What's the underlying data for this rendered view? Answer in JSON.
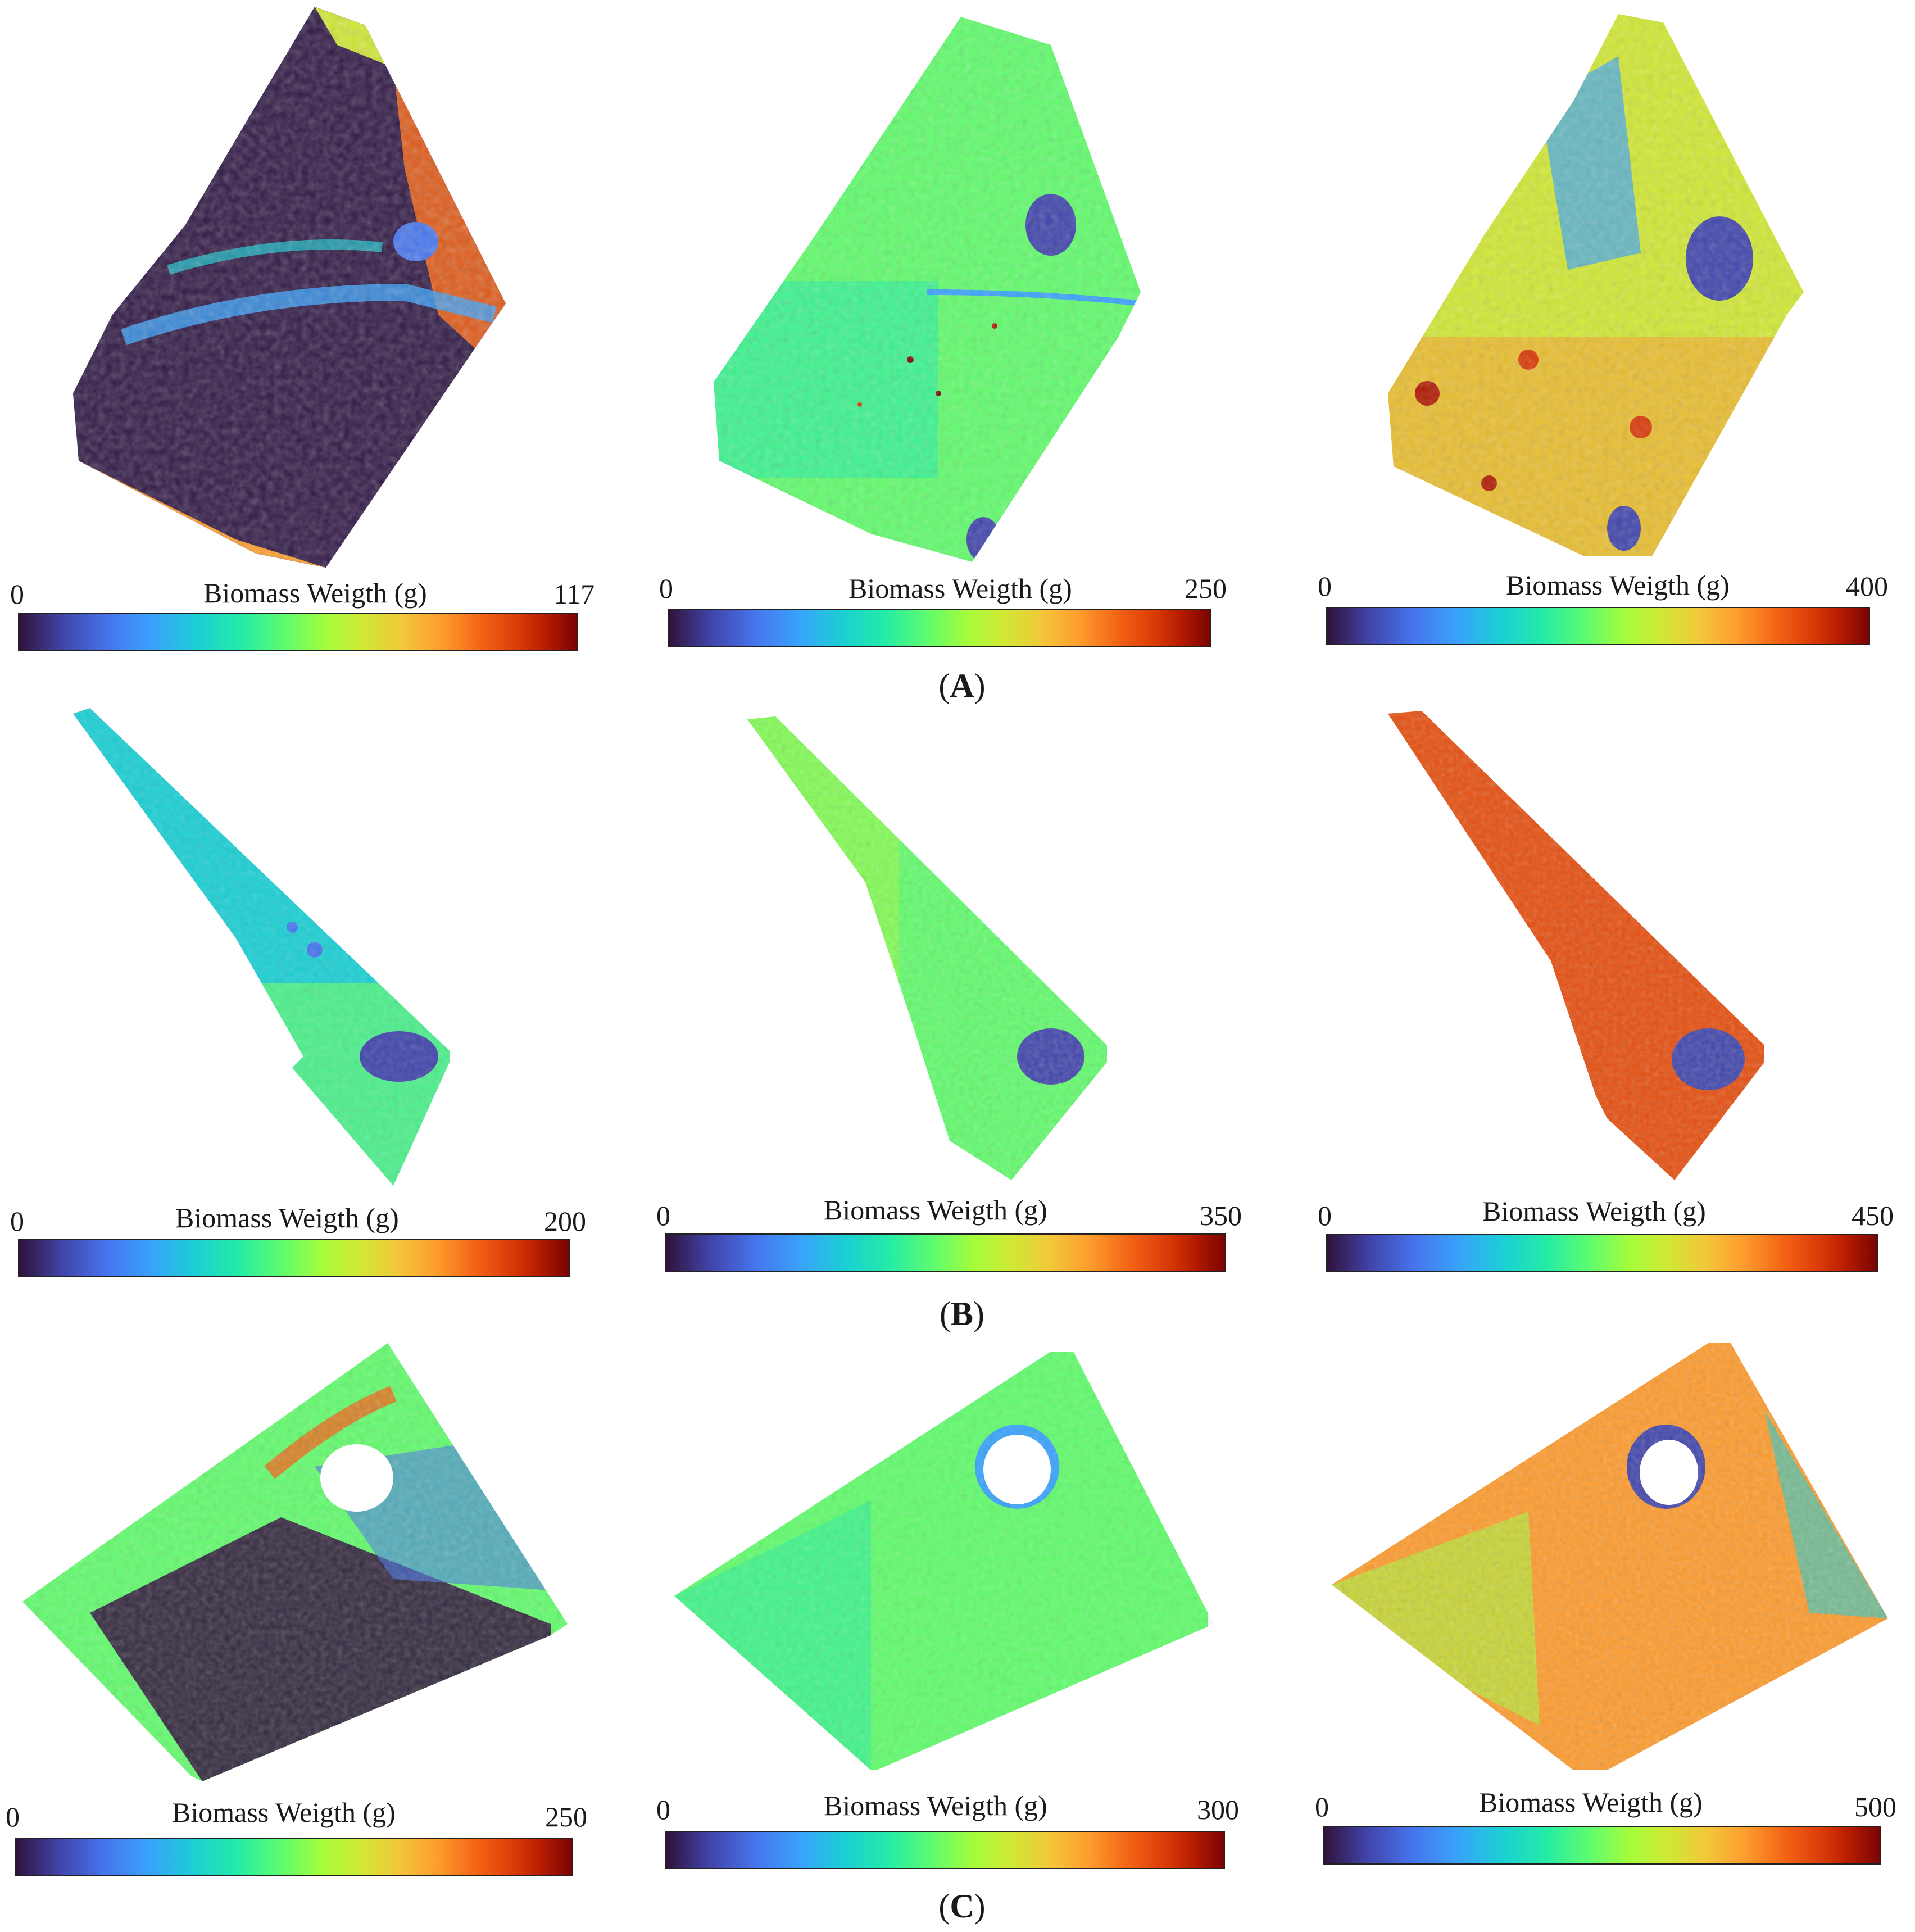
{
  "colormap": [
    "#30123b",
    "#4145ab",
    "#4675ed",
    "#39a2fc",
    "#1bcfd4",
    "#24eca6",
    "#61fc6c",
    "#a4fc3b",
    "#d1e834",
    "#f3c63a",
    "#fe9b2d",
    "#f36315",
    "#d93806",
    "#b11901",
    "#7a0403"
  ],
  "rows": [
    {
      "label": "A",
      "panels": [
        {
          "min": "0",
          "title": "Biomass Weigth (g)",
          "max": "117",
          "dominant": "#3a2a7a"
        },
        {
          "min": "0",
          "title": "Biomass Weigth (g)",
          "max": "250",
          "dominant": "#6ee86a"
        },
        {
          "min": "0",
          "title": "Biomass Weigth (g)",
          "max": "400",
          "dominant": "#c9e03a"
        }
      ]
    },
    {
      "label": "B",
      "panels": [
        {
          "min": "0",
          "title": "Biomass Weigth (g)",
          "max": "200",
          "dominant": "#4cd6b0"
        },
        {
          "min": "0",
          "title": "Biomass Weigth (g)",
          "max": "350",
          "dominant": "#7fe85a"
        },
        {
          "min": "0",
          "title": "Biomass Weigth (g)",
          "max": "450",
          "dominant": "#e0571a"
        }
      ]
    },
    {
      "label": "C",
      "panels": [
        {
          "min": "0",
          "title": "Biomass Weigth (g)",
          "max": "250",
          "dominant": "#3b3fa0"
        },
        {
          "min": "0",
          "title": "Biomass Weigth (g)",
          "max": "300",
          "dominant": "#8ee85a"
        },
        {
          "min": "0",
          "title": "Biomass Weigth (g)",
          "max": "500",
          "dominant": "#f0902e"
        }
      ]
    }
  ]
}
